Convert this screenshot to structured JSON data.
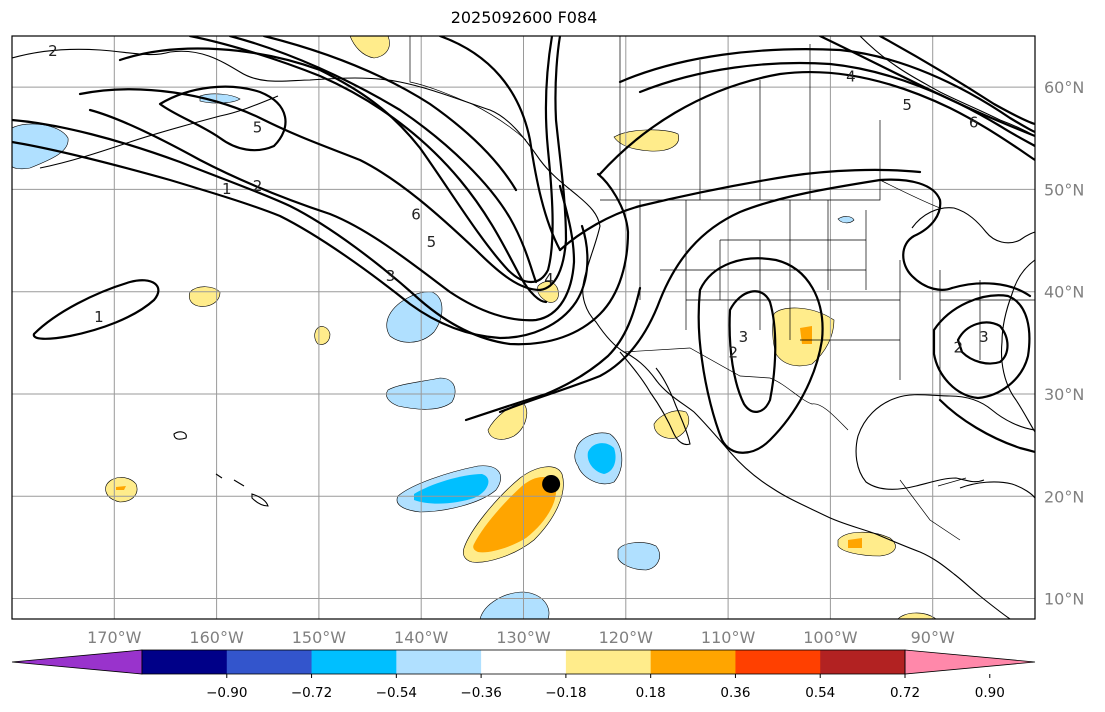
{
  "title": "2025092600 F084",
  "map": {
    "projection": "equirectangular",
    "lon_range": [
      -180,
      -80
    ],
    "lat_range": [
      8,
      65
    ],
    "lon_labels": [
      "170°W",
      "160°W",
      "150°W",
      "140°W",
      "130°W",
      "120°W",
      "110°W",
      "100°W",
      "90°W"
    ],
    "lat_labels": [
      "60°N",
      "50°N",
      "40°N",
      "30°N",
      "20°N",
      "10°N"
    ],
    "marker": {
      "lon": -127.3,
      "lat": 21.2,
      "color": "#000000"
    }
  },
  "colorbar": {
    "colors": [
      "#9933cc",
      "#000088",
      "#3355cc",
      "#00bfff",
      "#b0e0ff",
      "#ffffff",
      "#ffec8b",
      "#ffa500",
      "#ff4000",
      "#b22222",
      "#ff88aa"
    ],
    "tick_labels": [
      "−0.90",
      "−0.72",
      "−0.54",
      "−0.36",
      "−0.18",
      "0.18",
      "0.36",
      "0.54",
      "0.72",
      "0.90"
    ],
    "extend": "both"
  },
  "contour_labels": [
    {
      "text": "2",
      "lon": -176,
      "lat": 63.5
    },
    {
      "text": "5",
      "lon": -156,
      "lat": 56
    },
    {
      "text": "1",
      "lon": -159,
      "lat": 50
    },
    {
      "text": "2",
      "lon": -156,
      "lat": 50.3
    },
    {
      "text": "6",
      "lon": -140.5,
      "lat": 47.5
    },
    {
      "text": "5",
      "lon": -139,
      "lat": 44.8
    },
    {
      "text": "3",
      "lon": -143,
      "lat": 41.5
    },
    {
      "text": "1",
      "lon": -171.5,
      "lat": 37.5
    },
    {
      "text": "4",
      "lon": -127.5,
      "lat": 41.2
    },
    {
      "text": "3",
      "lon": -108.5,
      "lat": 35.5
    },
    {
      "text": "2",
      "lon": -109.5,
      "lat": 34
    },
    {
      "text": "3",
      "lon": -85,
      "lat": 35.5
    },
    {
      "text": "2",
      "lon": -87.5,
      "lat": 34.5
    },
    {
      "text": "4",
      "lon": -98,
      "lat": 61
    },
    {
      "text": "5",
      "lon": -92.5,
      "lat": 58.2
    },
    {
      "text": "6",
      "lon": -86,
      "lat": 56.5
    }
  ]
}
